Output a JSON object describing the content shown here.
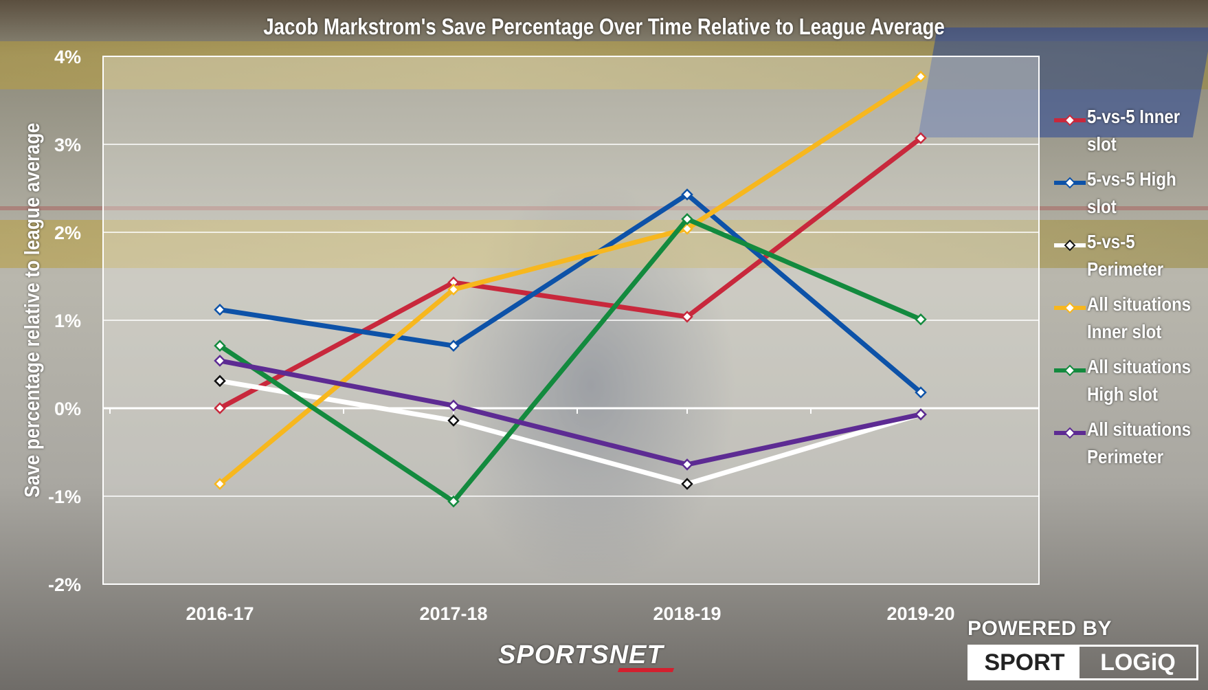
{
  "chart_data": {
    "type": "line",
    "title": "Jacob Markstrom's Save Percentage Over Time Relative to League Average",
    "xlabel": "",
    "ylabel": "Save percentage relative to league average",
    "categories": [
      "2016-17",
      "2017-18",
      "2018-19",
      "2019-20"
    ],
    "ylim": [
      -2,
      4
    ],
    "yticks": [
      -2,
      -1,
      0,
      1,
      2,
      3,
      4
    ],
    "ytick_labels": [
      "-2%",
      "-1%",
      "0%",
      "1%",
      "2%",
      "3%",
      "4%"
    ],
    "grid": true,
    "legend_position": "right",
    "series": [
      {
        "name": "5-vs-5 Inner slot",
        "color": "#c8283c",
        "values": [
          0.0,
          1.43,
          1.04,
          3.07
        ]
      },
      {
        "name": "5-vs-5 High slot",
        "color": "#0d52a8",
        "values": [
          1.12,
          0.71,
          2.43,
          0.18
        ]
      },
      {
        "name": "5-vs-5 Perimeter",
        "color": "#ffffff",
        "values": [
          0.31,
          -0.14,
          -0.86,
          -0.07
        ]
      },
      {
        "name": "All situations Inner slot",
        "color": "#f7b71e",
        "values": [
          -0.86,
          1.35,
          2.04,
          3.77
        ]
      },
      {
        "name": "All situations High slot",
        "color": "#138a3e",
        "values": [
          0.71,
          -1.06,
          2.15,
          1.01
        ]
      },
      {
        "name": "All situations Perimeter",
        "color": "#5d2b93",
        "values": [
          0.54,
          0.03,
          -0.64,
          -0.07
        ]
      }
    ]
  },
  "legend": {
    "items": [
      {
        "line1": "5-vs-5 Inner",
        "line2": "slot",
        "color": "#c8283c"
      },
      {
        "line1": "5-vs-5 High",
        "line2": "slot",
        "color": "#0d52a8"
      },
      {
        "line1": "5-vs-5",
        "line2": "Perimeter",
        "color": "#ffffff"
      },
      {
        "line1": "All situations",
        "line2": "Inner slot",
        "color": "#f7b71e"
      },
      {
        "line1": "All situations",
        "line2": "High slot",
        "color": "#138a3e"
      },
      {
        "line1": "All situations",
        "line2": "Perimeter",
        "color": "#5d2b93"
      }
    ]
  },
  "branding": {
    "sportsnet": "SPORTSNET",
    "powered_by": "POWERED BY",
    "sport": "SPORT",
    "logiq": "LOGiQ"
  }
}
